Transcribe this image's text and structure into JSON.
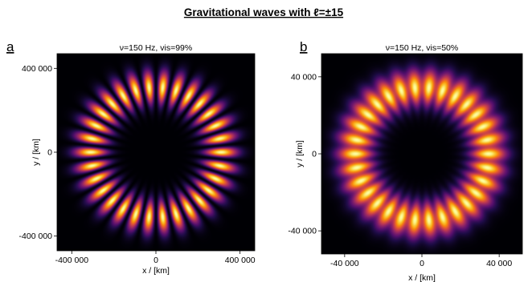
{
  "figure": {
    "title": "Gravitational waves with ℓ=±15"
  },
  "chart_data": [
    {
      "type": "heatmap",
      "panel_label": "a",
      "title": "ν=150 Hz, vis=99%",
      "xlabel": "x / [km]",
      "ylabel": "y / [km]",
      "xlim": [
        -470000,
        470000
      ],
      "ylim": [
        -470000,
        470000
      ],
      "xticks": [
        -400000,
        0,
        400000
      ],
      "xtick_labels": [
        "-400 000",
        "0",
        "400 000"
      ],
      "yticks": [
        -400000,
        0,
        400000
      ],
      "ytick_labels": [
        "-400 000",
        "0",
        "400 000"
      ],
      "pattern": {
        "lobes": 30,
        "orbital_angular_momentum": 15,
        "ring_radius": 310000,
        "ring_width": 68000,
        "visibility": 0.99,
        "colormap": "inferno"
      }
    },
    {
      "type": "heatmap",
      "panel_label": "b",
      "title": "ν=150 Hz, vis=50%",
      "xlabel": "x / [km]",
      "ylabel": "y / [km]",
      "xlim": [
        -52000,
        52000
      ],
      "ylim": [
        -52000,
        52000
      ],
      "xticks": [
        -40000,
        0,
        40000
      ],
      "xtick_labels": [
        "-40 000",
        "0",
        "40 000"
      ],
      "yticks": [
        -40000,
        0,
        40000
      ],
      "ytick_labels": [
        "-40 000",
        "0",
        "40 000"
      ],
      "pattern": {
        "lobes": 30,
        "orbital_angular_momentum": 15,
        "ring_radius": 34500,
        "ring_width": 8200,
        "visibility": 0.5,
        "colormap": "inferno"
      }
    }
  ]
}
